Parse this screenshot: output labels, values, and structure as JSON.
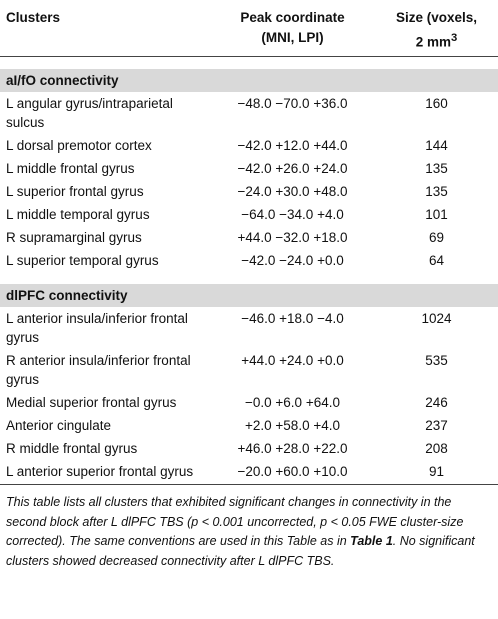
{
  "table": {
    "header": {
      "clusters": "Clusters",
      "peak": "Peak coordinate",
      "peak_sub": "(MNI, LPI)",
      "size": "Size (voxels,",
      "size_sub": "2 mm",
      "size_sup": "3"
    },
    "sections": [
      {
        "title": "aI/fO connectivity",
        "rows": [
          [
            "L angular gyrus/intraparietal sulcus",
            "−48.0 −70.0 +36.0",
            160
          ],
          [
            "L dorsal premotor cortex",
            "−42.0 +12.0 +44.0",
            144
          ],
          [
            "L middle frontal gyrus",
            "−42.0 +26.0 +24.0",
            135
          ],
          [
            "L superior frontal gyrus",
            "−24.0 +30.0 +48.0",
            135
          ],
          [
            "L middle temporal gyrus",
            "−64.0 −34.0 +4.0",
            101
          ],
          [
            "R supramarginal gyrus",
            "+44.0 −32.0 +18.0",
            69
          ],
          [
            "L superior temporal gyrus",
            "−42.0 −24.0 +0.0",
            64
          ]
        ]
      },
      {
        "title": "dlPFC connectivity",
        "rows": [
          [
            "L anterior insula/inferior frontal gyrus",
            "−46.0 +18.0 −4.0",
            1024
          ],
          [
            "R anterior insula/inferior frontal gyrus",
            "+44.0 +24.0 +0.0",
            535
          ],
          [
            "Medial superior frontal gyrus",
            "−0.0 +6.0 +64.0",
            246
          ],
          [
            "Anterior cingulate",
            "+2.0 +58.0 +4.0",
            237
          ],
          [
            "R middle frontal gyrus",
            "+46.0 +28.0 +22.0",
            208
          ],
          [
            "L anterior superior frontal gyrus",
            "−20.0 +60.0 +10.0",
            91
          ]
        ]
      }
    ],
    "caption": {
      "before": "This table lists all clusters that exhibited significant changes in connectivity in the second block after L dlPFC TBS (p < 0.001 uncorrected, p < 0.05 FWE cluster-size corrected). The same conventions are used in this Table as in ",
      "ref": "Table 1",
      "after": ". No significant clusters showed decreased connectivity after L dlPFC TBS."
    }
  }
}
